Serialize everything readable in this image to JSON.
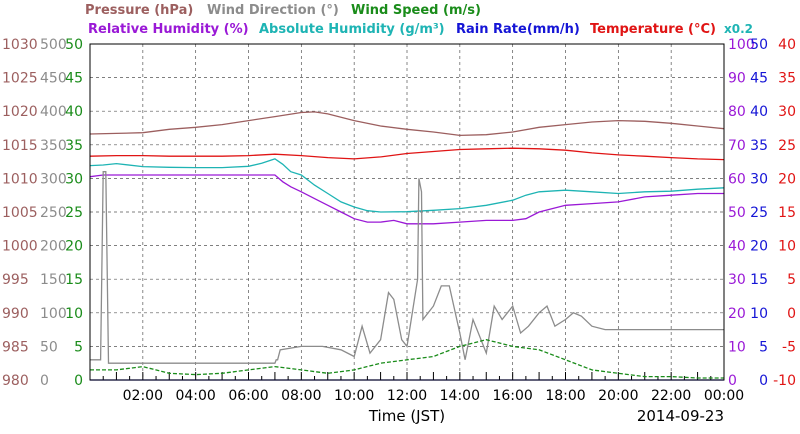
{
  "chart_data": {
    "type": "line",
    "date": "2014-09-23",
    "xlabel": "Time (JST)",
    "x_ticks": [
      "02:00",
      "04:00",
      "06:00",
      "08:00",
      "10:00",
      "12:00",
      "14:00",
      "16:00",
      "18:00",
      "20:00",
      "22:00",
      "00:00"
    ],
    "x_range_hours": [
      0,
      24
    ],
    "legend_rows": [
      [
        {
          "text": "Pressure (hPa)",
          "color": "#9c5f5f"
        },
        {
          "text": "Wind Direction (°)",
          "color": "#8c8c8c"
        },
        {
          "text": "Wind Speed (m/s)",
          "color": "#1a8c1a"
        }
      ],
      [
        {
          "text": "Relative Humidity (%)",
          "color": "#9a19d6"
        },
        {
          "text": "Absolute Humidity (g/m³)",
          "color": "#1eb4b4"
        },
        {
          "text": "Rain Rate(mm/h)",
          "color": "#1515d6"
        },
        {
          "text": "Temperature (°C)",
          "color": "#e01414"
        }
      ]
    ],
    "scale_note": "x0.2",
    "axes": {
      "pressure": {
        "color": "#9c5f5f",
        "labels": [
          "1030",
          "1025",
          "1020",
          "1015",
          "1010",
          "1005",
          "1000",
          "995",
          "990",
          "985",
          "980"
        ],
        "range": [
          980,
          1030
        ]
      },
      "wind_direction": {
        "color": "#8c8c8c",
        "labels": [
          "500",
          "450",
          "400",
          "350",
          "300",
          "250",
          "200",
          "150",
          "100",
          "50",
          "0"
        ],
        "range": [
          0,
          500
        ]
      },
      "wind_speed": {
        "color": "#1a8c1a",
        "labels": [
          "50",
          "45",
          "40",
          "35",
          "30",
          "25",
          "20",
          "15",
          "10",
          "5",
          "0"
        ],
        "range": [
          0,
          50
        ]
      },
      "humidity": {
        "color": "#9a19d6",
        "labels": [
          "100",
          "90",
          "80",
          "70",
          "60",
          "50",
          "40",
          "30",
          "20",
          "10",
          "0"
        ],
        "range": [
          0,
          100
        ]
      },
      "rain_rate": {
        "color": "#1515d6",
        "labels": [
          "50",
          "45",
          "40",
          "35",
          "30",
          "25",
          "20",
          "15",
          "10",
          "5",
          "0"
        ],
        "range": [
          0,
          50
        ]
      },
      "temperature": {
        "color": "#e01414",
        "labels": [
          "40",
          "35",
          "30",
          "25",
          "20",
          "15",
          "10",
          "5",
          "0",
          "-5",
          "-10"
        ],
        "range": [
          -10,
          40
        ]
      }
    },
    "series": [
      {
        "name": "Pressure (hPa)",
        "axis": "pressure",
        "color": "#9c5f5f",
        "x": [
          0,
          1,
          2,
          3,
          4,
          5,
          6,
          7,
          8,
          8.5,
          9,
          10,
          11,
          12,
          13,
          14,
          15,
          16,
          17,
          18,
          19,
          20,
          21,
          22,
          23,
          24
        ],
        "values": [
          1016.6,
          1016.7,
          1016.8,
          1017.3,
          1017.6,
          1018.0,
          1018.6,
          1019.2,
          1019.8,
          1019.9,
          1019.6,
          1018.6,
          1017.8,
          1017.3,
          1016.9,
          1016.4,
          1016.5,
          1016.9,
          1017.6,
          1018.0,
          1018.4,
          1018.6,
          1018.5,
          1018.2,
          1017.8,
          1017.4
        ]
      },
      {
        "name": "Temperature (°C)",
        "axis": "temperature",
        "color": "#e01414",
        "x": [
          0,
          1,
          2,
          3,
          4,
          5,
          6,
          7,
          8,
          9,
          10,
          11,
          12,
          13,
          14,
          15,
          16,
          17,
          18,
          19,
          20,
          21,
          22,
          23,
          24
        ],
        "values": [
          23.3,
          23.4,
          23.4,
          23.3,
          23.3,
          23.3,
          23.4,
          23.6,
          23.4,
          23.1,
          22.9,
          23.2,
          23.7,
          24.0,
          24.3,
          24.4,
          24.5,
          24.4,
          24.2,
          23.8,
          23.5,
          23.3,
          23.1,
          22.9,
          22.8
        ]
      },
      {
        "name": "Absolute Humidity (g/m³)",
        "axis": "humidity",
        "color": "#1eb4b4",
        "x": [
          0,
          0.5,
          1,
          2,
          3,
          4,
          5,
          6,
          6.5,
          7,
          7.3,
          7.6,
          8,
          8.5,
          9,
          9.5,
          10,
          10.5,
          11,
          12,
          13,
          14,
          15,
          16,
          16.5,
          17,
          18,
          19,
          20,
          21,
          22,
          23,
          24
        ],
        "values": [
          63.8,
          64.0,
          64.4,
          63.5,
          63.3,
          63.2,
          63.2,
          63.6,
          64.5,
          65.8,
          64.2,
          62.0,
          61.0,
          58.0,
          55.5,
          53.0,
          51.5,
          50.4,
          50.0,
          50.1,
          50.5,
          51.0,
          52.0,
          53.5,
          55.0,
          56.0,
          56.5,
          56.0,
          55.5,
          56.0,
          56.2,
          56.8,
          57.2
        ]
      },
      {
        "name": "Relative Humidity (%)",
        "axis": "humidity",
        "color": "#9a19d6",
        "x": [
          0,
          0.5,
          1,
          2,
          3,
          4,
          5,
          6,
          7,
          7.3,
          7.6,
          8,
          8.5,
          9,
          9.5,
          10,
          10.5,
          11,
          11.5,
          12,
          13,
          14,
          15,
          16,
          16.5,
          17,
          17.5,
          18,
          19,
          20,
          21,
          22,
          23,
          24
        ],
        "values": [
          60.5,
          61.0,
          61.0,
          61.0,
          61.0,
          61.0,
          61.0,
          61.0,
          61.0,
          59.0,
          57.5,
          56.0,
          54.0,
          52.0,
          50.0,
          48.0,
          47.0,
          47.0,
          47.5,
          46.5,
          46.5,
          47.0,
          47.5,
          47.5,
          48.0,
          50.0,
          51.0,
          52.0,
          52.5,
          53.0,
          54.5,
          55.0,
          55.5,
          55.5
        ]
      },
      {
        "name": "Wind Direction (°)",
        "axis": "wind_direction",
        "color": "#8c8c8c",
        "x": [
          0,
          0.4,
          0.5,
          0.6,
          0.7,
          2,
          4,
          6,
          7.0,
          7.05,
          7.1,
          7.2,
          8,
          8.8,
          9.5,
          10,
          10.3,
          10.6,
          11,
          11.3,
          11.5,
          11.8,
          12,
          12.4,
          12.45,
          12.55,
          12.6,
          13,
          13.3,
          13.6,
          14,
          14.2,
          14.5,
          15,
          15.3,
          15.6,
          16,
          16.3,
          16.6,
          17,
          17.3,
          17.6,
          18,
          18.3,
          18.6,
          19,
          19.5,
          20,
          22,
          24
        ],
        "values": [
          30,
          30,
          310,
          310,
          25,
          25,
          25,
          25,
          25,
          30,
          30,
          45,
          50,
          50,
          45,
          35,
          80,
          40,
          60,
          130,
          120,
          60,
          50,
          150,
          300,
          280,
          90,
          110,
          140,
          140,
          70,
          30,
          90,
          40,
          110,
          90,
          110,
          70,
          80,
          100,
          110,
          80,
          90,
          100,
          95,
          80,
          75,
          75,
          75,
          75
        ]
      },
      {
        "name": "Wind Speed (m/s)",
        "axis": "wind_speed",
        "color": "#1a8c1a",
        "x": [
          0,
          1,
          2,
          3,
          4,
          5,
          6,
          7,
          8,
          9,
          10,
          11,
          12,
          13,
          14,
          15,
          16,
          17,
          18,
          19,
          20,
          21,
          22,
          23,
          24
        ],
        "values": [
          1.5,
          1.5,
          2.0,
          1.0,
          0.8,
          1.0,
          1.5,
          2.0,
          1.5,
          1.0,
          1.5,
          2.5,
          3.0,
          3.5,
          5.0,
          6.0,
          5.0,
          4.5,
          3.0,
          1.5,
          1.0,
          0.5,
          0.5,
          0.3,
          0.3
        ]
      },
      {
        "name": "Rain Rate(mm/h)",
        "axis": "rain_rate",
        "color": "#1515d6",
        "x": [
          0,
          24
        ],
        "values": [
          0,
          0
        ]
      }
    ]
  }
}
